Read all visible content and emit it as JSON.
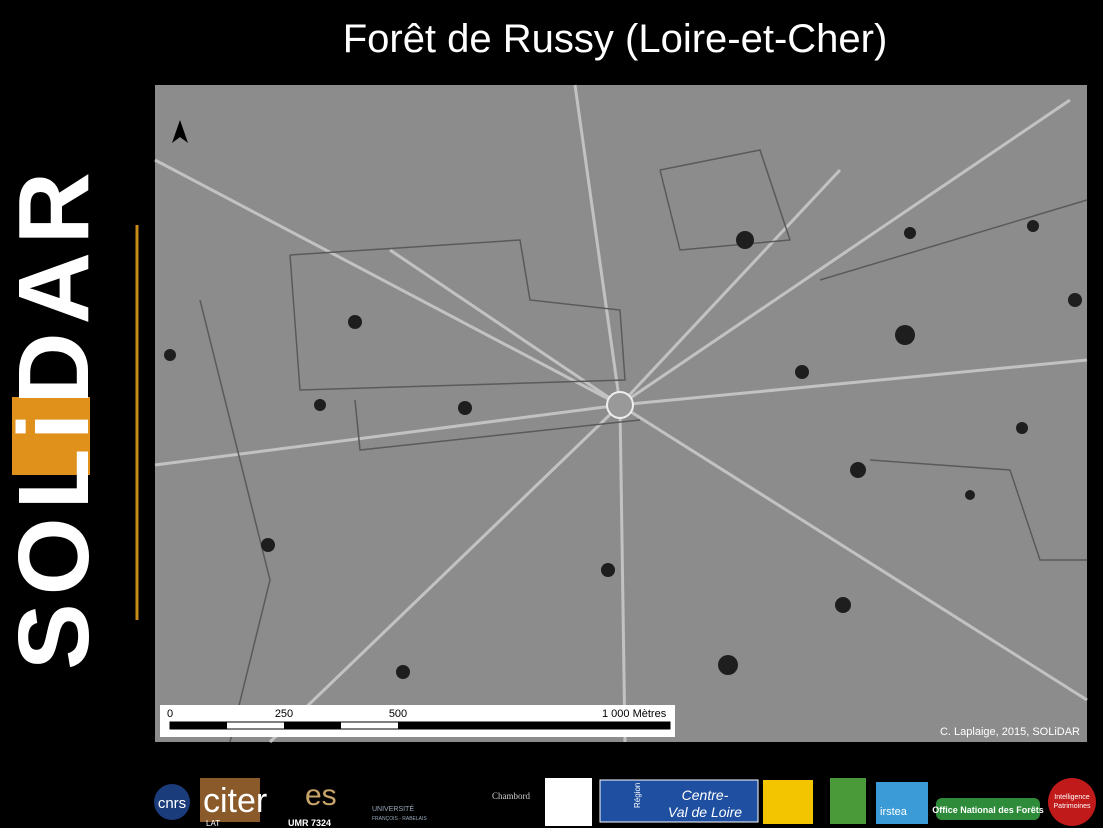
{
  "header": {
    "title": "Forêt de Russy (Loire-et-Cher)"
  },
  "brand": {
    "parts": [
      "SO",
      "Li",
      "DAR"
    ]
  },
  "map": {
    "scale": {
      "labels": [
        "0",
        "250",
        "500",
        "1 000 Mètres"
      ]
    },
    "credit": "C. Laplaige, 2015, SOLiDAR"
  },
  "logos": [
    "cnrs",
    "citer",
    "es",
    "LAT",
    "UMR 7324",
    "UNIVERSITÉ",
    "FRANÇOIS - RABELAIS",
    "Chambord",
    "Région",
    "Centre-",
    "Val de Loire",
    "irstea",
    "Office National des Forêts",
    "Intelligence",
    "Patrimoines"
  ]
}
